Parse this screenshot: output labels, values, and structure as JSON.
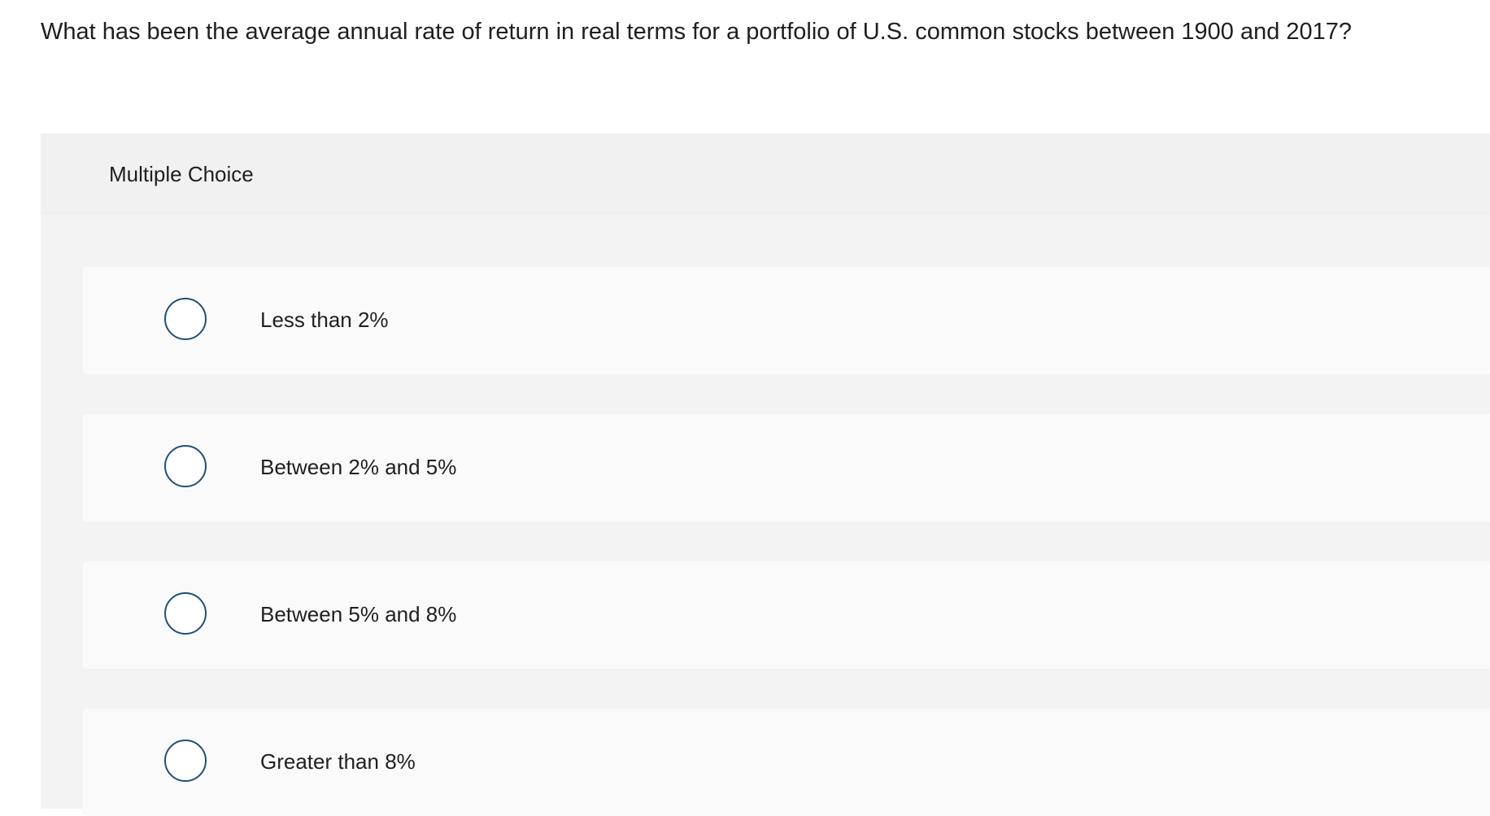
{
  "question": {
    "text": "What has been the average annual rate of return in real terms for a portfolio of U.S. common stocks between 1900 and 2017?"
  },
  "panel": {
    "title": "Multiple Choice"
  },
  "options": [
    {
      "label": "Less than 2%"
    },
    {
      "label": "Between 2% and 5%"
    },
    {
      "label": "Between 5% and 8%"
    },
    {
      "label": "Greater than 8%"
    }
  ],
  "colors": {
    "radio_border": "#1f4f7a",
    "panel_background": "#f3f3f3",
    "option_background": "#fafafa"
  }
}
